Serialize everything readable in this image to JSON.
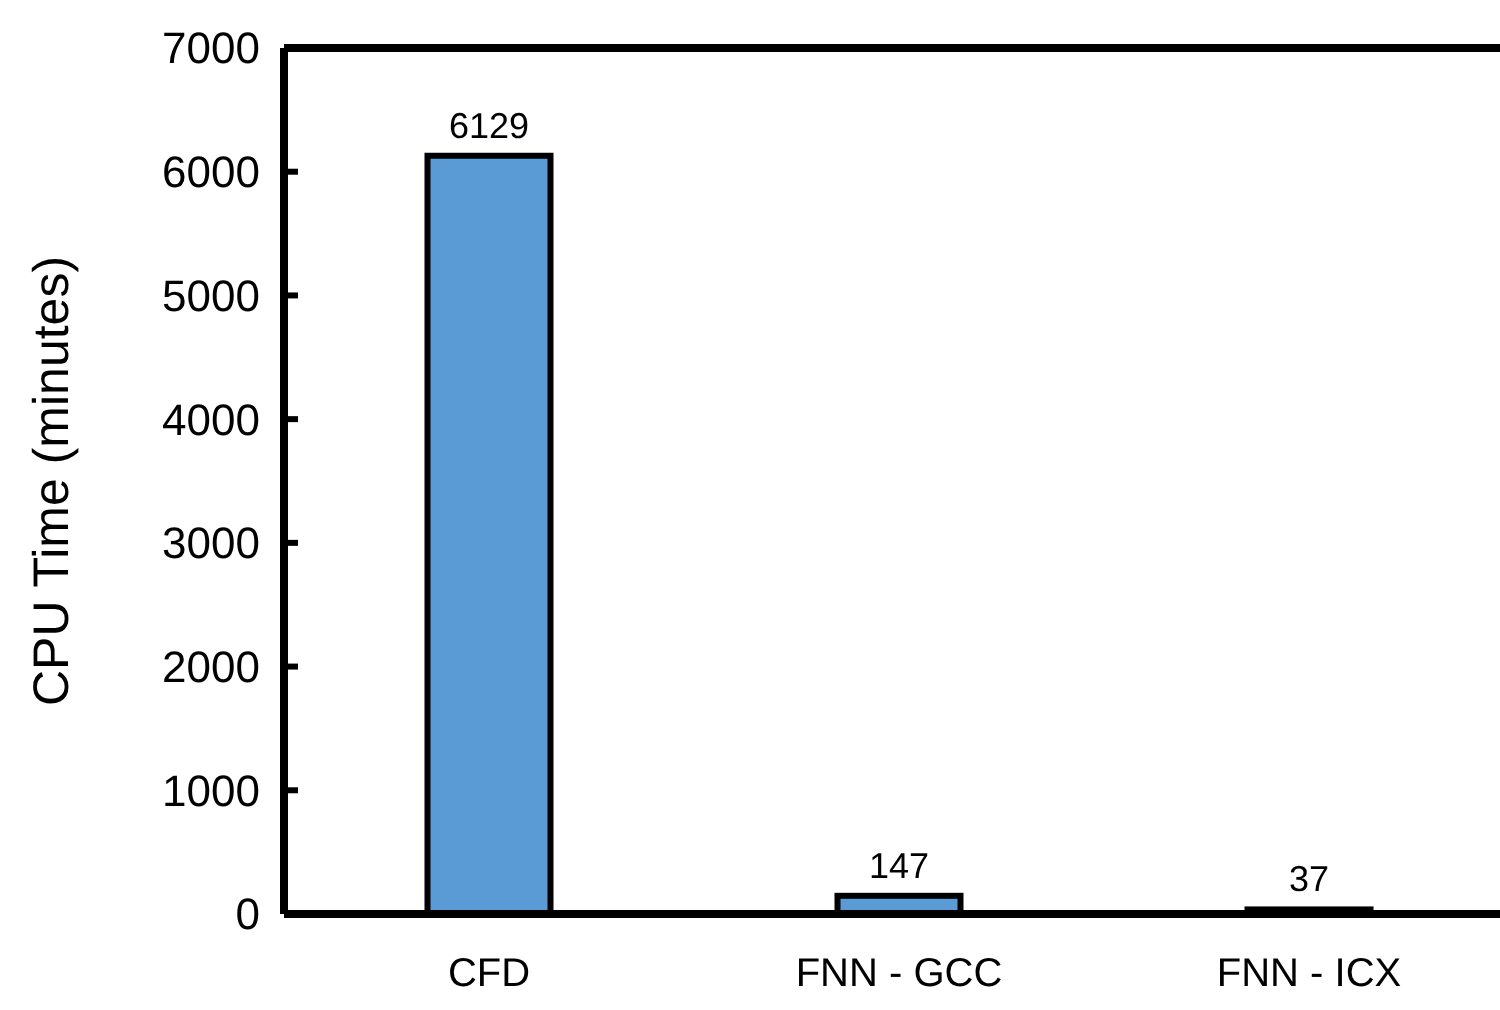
{
  "chart_data": {
    "type": "bar",
    "ylabel": "CPU Time (minutes)",
    "categories": [
      "CFD",
      "FNN - GCC",
      "FNN - ICX"
    ],
    "values": [
      6129,
      147,
      37
    ],
    "color": "#5b9bd5",
    "data_labels": true,
    "ylim": [
      0,
      7000
    ],
    "yticks": [
      0,
      1000,
      2000,
      3000,
      4000,
      5000,
      6000,
      7000
    ],
    "grid": false
  }
}
